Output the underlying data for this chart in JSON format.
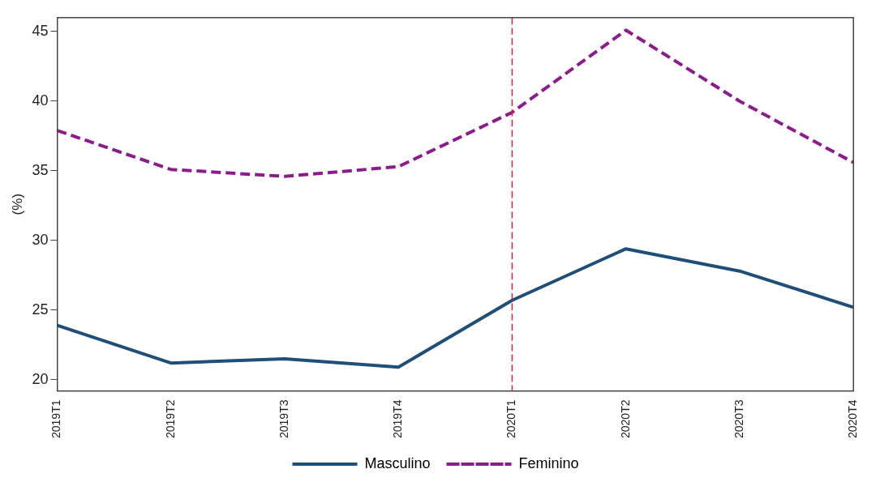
{
  "chart_data": {
    "type": "line",
    "ylabel": "(%)",
    "categories": [
      "2019T1",
      "2019T2",
      "2019T3",
      "2019T4",
      "2020T1",
      "2020T2",
      "2020T3",
      "2020T4"
    ],
    "series": [
      {
        "name": "Masculino",
        "color": "#1f4e79",
        "line_style": "solid",
        "values": [
          23.9,
          21.2,
          21.5,
          20.9,
          25.7,
          29.4,
          27.8,
          25.2
        ]
      },
      {
        "name": "Feminino",
        "color": "#8c1c8c",
        "line_style": "dashed",
        "values": [
          37.9,
          35.1,
          34.6,
          35.3,
          39.2,
          45.1,
          40.0,
          35.6
        ]
      }
    ],
    "ylim": [
      19.2,
      46
    ],
    "yticks": [
      20,
      25,
      30,
      35,
      40,
      45
    ],
    "grid": false,
    "legend": "bottom",
    "marker": "none",
    "ref_lines": [
      {
        "axis": "x",
        "value": "2020T1",
        "color": "#e0203a",
        "line_style": "dashed"
      }
    ]
  }
}
